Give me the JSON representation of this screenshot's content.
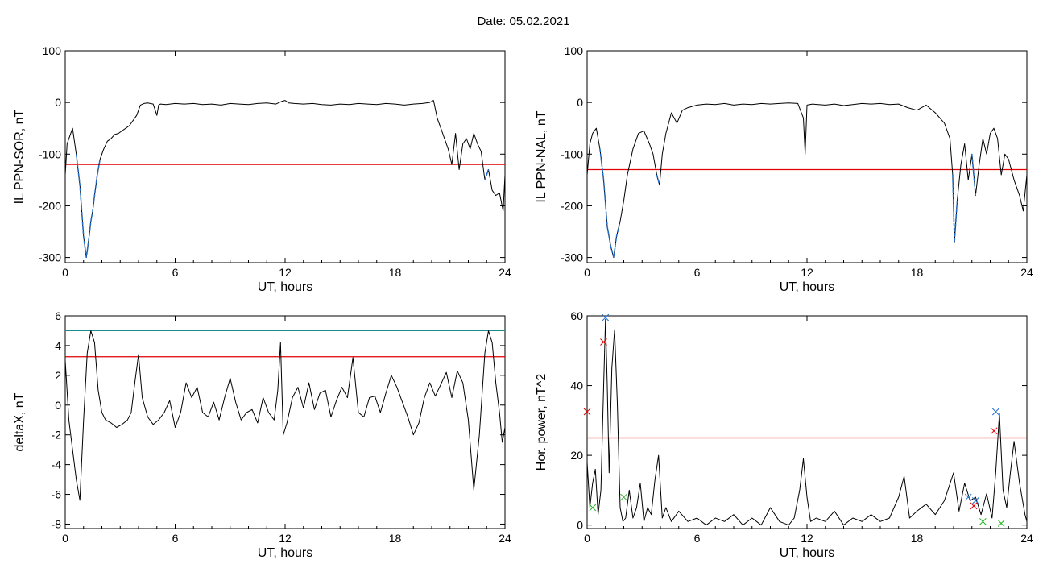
{
  "figure": {
    "title": "Date:  05.02.2021"
  },
  "colors": {
    "axis": "#000000",
    "trace": "#000000",
    "threshold_red": "#e00000",
    "threshold_teal": "#1a8c8c",
    "highlight_blue": "#1f6fd1",
    "marker_red": "#e00000",
    "marker_blue": "#1f6fd1",
    "marker_green": "#28b428"
  },
  "chart_data": [
    {
      "id": "panel-ppn-sor",
      "type": "line",
      "xlabel": "UT, hours",
      "ylabel": "IL PPN-SOR, nT",
      "xlim": [
        0,
        24
      ],
      "ylim": [
        -310,
        100
      ],
      "xticks": [
        0,
        6,
        12,
        18,
        24
      ],
      "yticks": [
        -300,
        -200,
        -100,
        0,
        100
      ],
      "grid": false,
      "series": [
        {
          "x": [
            0,
            0.1,
            0.25,
            0.4,
            0.6,
            0.8,
            1.0,
            1.15,
            1.3,
            1.4,
            1.5,
            1.6,
            1.75,
            1.9,
            2.1,
            2.3,
            2.5,
            2.7,
            2.9,
            3.1,
            3.3,
            3.5,
            3.7,
            3.9,
            4.1,
            4.3,
            4.5,
            4.8,
            5.0,
            5.1,
            5.2,
            5.5,
            6.0,
            6.5,
            7.0,
            7.5,
            8.0,
            8.5,
            9.0,
            9.5,
            10.0,
            10.5,
            11.0,
            11.5,
            11.8,
            12.0,
            12.2,
            12.5,
            13.0,
            13.5,
            14.0,
            14.5,
            15.0,
            15.5,
            16.0,
            16.5,
            17.0,
            17.5,
            18.0,
            18.5,
            19.0,
            19.5,
            19.9,
            20.1,
            20.3,
            20.5,
            20.7,
            20.9,
            21.1,
            21.3,
            21.5,
            21.7,
            21.9,
            22.1,
            22.3,
            22.5,
            22.7,
            22.9,
            23.1,
            23.3,
            23.5,
            23.7,
            23.9,
            24.0
          ],
          "y": [
            -140,
            -80,
            -65,
            -50,
            -100,
            -160,
            -260,
            -300,
            -260,
            -230,
            -210,
            -180,
            -140,
            -110,
            -90,
            -75,
            -70,
            -62,
            -60,
            -55,
            -50,
            -45,
            -35,
            -25,
            -5,
            -2,
            -1,
            -3,
            -25,
            -5,
            -3,
            -4,
            -2,
            -3,
            -2,
            -4,
            -3,
            -5,
            -2,
            -3,
            -4,
            -2,
            -1,
            -3,
            2,
            4,
            -1,
            -2,
            -3,
            -2,
            -4,
            -5,
            -3,
            -4,
            -2,
            -3,
            -4,
            -2,
            -3,
            -5,
            -3,
            -2,
            0,
            4,
            -30,
            -50,
            -70,
            -90,
            -120,
            -60,
            -130,
            -80,
            -70,
            -90,
            -60,
            -80,
            -95,
            -150,
            -130,
            -170,
            -180,
            -175,
            -210,
            -140
          ],
          "highlight_ranges": [
            [
              0.5,
              1.9
            ],
            [
              22.9,
              23.1
            ]
          ]
        }
      ],
      "thresholds": [
        {
          "y": -120,
          "color": "red"
        }
      ]
    },
    {
      "id": "panel-ppn-nal",
      "type": "line",
      "xlabel": "UT, hours",
      "ylabel": "IL PPN-NAL, nT",
      "xlim": [
        0,
        24
      ],
      "ylim": [
        -310,
        100
      ],
      "xticks": [
        0,
        6,
        12,
        18,
        24
      ],
      "yticks": [
        -300,
        -200,
        -100,
        0,
        100
      ],
      "grid": false,
      "series": [
        {
          "x": [
            0,
            0.15,
            0.3,
            0.5,
            0.7,
            0.9,
            1.1,
            1.3,
            1.45,
            1.6,
            1.8,
            2.0,
            2.2,
            2.5,
            2.8,
            3.1,
            3.4,
            3.6,
            3.8,
            3.95,
            4.1,
            4.3,
            4.6,
            4.9,
            5.2,
            5.5,
            6.0,
            6.5,
            7.0,
            7.5,
            8.0,
            8.5,
            9.0,
            9.5,
            10.0,
            10.5,
            11.0,
            11.5,
            11.8,
            11.9,
            12.0,
            12.3,
            12.6,
            13.0,
            13.5,
            14.0,
            14.5,
            15.0,
            15.5,
            16.0,
            16.5,
            17.0,
            17.5,
            18.0,
            18.5,
            19.0,
            19.5,
            19.8,
            19.95,
            20.05,
            20.2,
            20.4,
            20.6,
            20.8,
            21.0,
            21.2,
            21.4,
            21.6,
            21.8,
            22.0,
            22.2,
            22.4,
            22.6,
            22.8,
            23.0,
            23.3,
            23.6,
            23.8,
            24.0
          ],
          "y": [
            -140,
            -80,
            -60,
            -50,
            -90,
            -150,
            -240,
            -280,
            -300,
            -260,
            -230,
            -190,
            -140,
            -90,
            -60,
            -55,
            -80,
            -100,
            -140,
            -160,
            -100,
            -60,
            -20,
            -40,
            -15,
            -10,
            -5,
            -3,
            -4,
            -2,
            -5,
            -3,
            -4,
            -2,
            -3,
            -2,
            -1,
            -2,
            -30,
            -100,
            -5,
            -3,
            -4,
            -5,
            -3,
            -6,
            -4,
            -2,
            -3,
            -2,
            -4,
            -3,
            -10,
            -15,
            -5,
            -20,
            -40,
            -70,
            -140,
            -270,
            -190,
            -120,
            -80,
            -150,
            -100,
            -180,
            -120,
            -70,
            -100,
            -60,
            -50,
            -70,
            -140,
            -100,
            -110,
            -150,
            -180,
            -210,
            -140
          ],
          "highlight_ranges": [
            [
              0.7,
              1.9
            ],
            [
              3.7,
              4.0
            ],
            [
              19.9,
              20.3
            ],
            [
              20.9,
              21.3
            ],
            [
              22.3,
              22.5
            ]
          ]
        }
      ],
      "thresholds": [
        {
          "y": -130,
          "color": "red"
        }
      ]
    },
    {
      "id": "panel-deltax",
      "type": "line",
      "xlabel": "UT, hours",
      "ylabel": "deltaX, nT",
      "xlim": [
        0,
        24
      ],
      "ylim": [
        -8.3,
        6
      ],
      "xticks": [
        0,
        6,
        12,
        18,
        24
      ],
      "yticks": [
        -8,
        -6,
        -4,
        -2,
        0,
        2,
        4,
        6
      ],
      "grid": false,
      "series": [
        {
          "x": [
            0,
            0.2,
            0.4,
            0.6,
            0.8,
            1.0,
            1.2,
            1.4,
            1.6,
            1.8,
            2.0,
            2.2,
            2.5,
            2.8,
            3.1,
            3.4,
            3.6,
            3.8,
            4.0,
            4.2,
            4.5,
            4.8,
            5.1,
            5.4,
            5.7,
            6.0,
            6.3,
            6.6,
            6.9,
            7.2,
            7.5,
            7.8,
            8.1,
            8.4,
            8.7,
            9.0,
            9.3,
            9.6,
            9.9,
            10.2,
            10.5,
            10.8,
            11.1,
            11.4,
            11.6,
            11.75,
            11.9,
            12.1,
            12.4,
            12.7,
            13.0,
            13.3,
            13.6,
            13.9,
            14.2,
            14.5,
            14.8,
            15.1,
            15.4,
            15.7,
            16.0,
            16.3,
            16.6,
            16.9,
            17.2,
            17.5,
            17.8,
            18.1,
            18.4,
            18.7,
            19.0,
            19.3,
            19.6,
            19.9,
            20.2,
            20.5,
            20.8,
            21.1,
            21.4,
            21.7,
            22.0,
            22.3,
            22.6,
            22.9,
            23.1,
            23.3,
            23.5,
            23.7,
            23.85,
            24.0
          ],
          "y": [
            3.0,
            -1.0,
            -3.0,
            -5.0,
            -6.4,
            -1.0,
            3.5,
            5.0,
            4.2,
            1.0,
            -0.5,
            -1.0,
            -1.2,
            -1.5,
            -1.3,
            -1.0,
            -0.5,
            1.5,
            3.4,
            0.5,
            -0.8,
            -1.3,
            -1.0,
            -0.5,
            0.3,
            -1.5,
            -0.5,
            1.5,
            0.5,
            1.2,
            -0.5,
            -0.8,
            0.2,
            -1.0,
            0.5,
            1.8,
            0.2,
            -1.0,
            -0.5,
            -0.3,
            -1.2,
            0.5,
            -0.5,
            -1.0,
            1.0,
            4.2,
            -2.0,
            -1.2,
            0.5,
            1.2,
            -0.2,
            1.5,
            -0.3,
            0.8,
            1.0,
            -0.8,
            0.3,
            1.2,
            0.5,
            3.2,
            -0.5,
            -0.8,
            0.5,
            0.6,
            -0.5,
            0.8,
            2.0,
            1.2,
            0.2,
            -0.8,
            -2.0,
            -1.2,
            0.5,
            1.5,
            0.6,
            1.4,
            2.2,
            0.5,
            2.3,
            1.5,
            -1.0,
            -5.7,
            -2.0,
            3.5,
            5.0,
            4.2,
            1.5,
            -0.5,
            -2.5,
            -1.5
          ]
        }
      ],
      "thresholds": [
        {
          "y": 5.0,
          "color": "teal"
        },
        {
          "y": 3.25,
          "color": "red"
        }
      ]
    },
    {
      "id": "panel-hor-power",
      "type": "line",
      "xlabel": "UT, hours",
      "ylabel": "Hor. power, nT^2",
      "xlim": [
        0,
        24
      ],
      "ylim": [
        -1,
        60
      ],
      "xticks": [
        0,
        6,
        12,
        18,
        24
      ],
      "yticks": [
        0,
        20,
        40,
        60
      ],
      "grid": false,
      "series": [
        {
          "x": [
            0,
            0.15,
            0.3,
            0.45,
            0.6,
            0.75,
            0.9,
            1.0,
            1.1,
            1.2,
            1.35,
            1.5,
            1.65,
            1.8,
            1.95,
            2.1,
            2.3,
            2.5,
            2.7,
            2.9,
            3.1,
            3.3,
            3.5,
            3.7,
            3.9,
            4.1,
            4.3,
            4.6,
            5.0,
            5.5,
            6.0,
            6.5,
            7.0,
            7.5,
            8.0,
            8.5,
            9.0,
            9.5,
            10.0,
            10.5,
            11.0,
            11.3,
            11.6,
            11.8,
            12.0,
            12.2,
            12.5,
            13.0,
            13.5,
            14.0,
            14.5,
            15.0,
            15.5,
            16.0,
            16.5,
            17.0,
            17.3,
            17.6,
            18.0,
            18.5,
            19.0,
            19.5,
            20.0,
            20.3,
            20.6,
            20.9,
            21.2,
            21.5,
            21.8,
            22.1,
            22.3,
            22.5,
            22.7,
            22.9,
            23.1,
            23.3,
            23.6,
            23.9,
            24.0
          ],
          "y": [
            18,
            5,
            12,
            16,
            3,
            10,
            40,
            59,
            40,
            15,
            45,
            56,
            35,
            5,
            1,
            2,
            10,
            2,
            5,
            12,
            1,
            5,
            3,
            13,
            20,
            2,
            5,
            1,
            4,
            1,
            2,
            0,
            2,
            1,
            3,
            0,
            2,
            0,
            5,
            1,
            0,
            2,
            10,
            19,
            8,
            1,
            2,
            1,
            4,
            0,
            2,
            1,
            3,
            1,
            2,
            8,
            14,
            2,
            4,
            6,
            3,
            7,
            15,
            4,
            12,
            7,
            8,
            3,
            9,
            2,
            15,
            32,
            10,
            5,
            15,
            24,
            12,
            3,
            1
          ]
        }
      ],
      "thresholds": [
        {
          "y": 25,
          "color": "red"
        }
      ],
      "markers": [
        {
          "x": 0.0,
          "y": 32.5,
          "color": "red"
        },
        {
          "x": 0.3,
          "y": 5,
          "color": "green"
        },
        {
          "x": 0.9,
          "y": 52.5,
          "color": "red"
        },
        {
          "x": 1.0,
          "y": 59.5,
          "color": "blue"
        },
        {
          "x": 2.0,
          "y": 8,
          "color": "green"
        },
        {
          "x": 20.8,
          "y": 8,
          "color": "blue"
        },
        {
          "x": 21.1,
          "y": 5.5,
          "color": "red"
        },
        {
          "x": 21.2,
          "y": 7,
          "color": "blue"
        },
        {
          "x": 21.6,
          "y": 1,
          "color": "green"
        },
        {
          "x": 22.2,
          "y": 27,
          "color": "red"
        },
        {
          "x": 22.3,
          "y": 32.5,
          "color": "blue"
        },
        {
          "x": 22.6,
          "y": 0.5,
          "color": "green"
        }
      ]
    }
  ]
}
